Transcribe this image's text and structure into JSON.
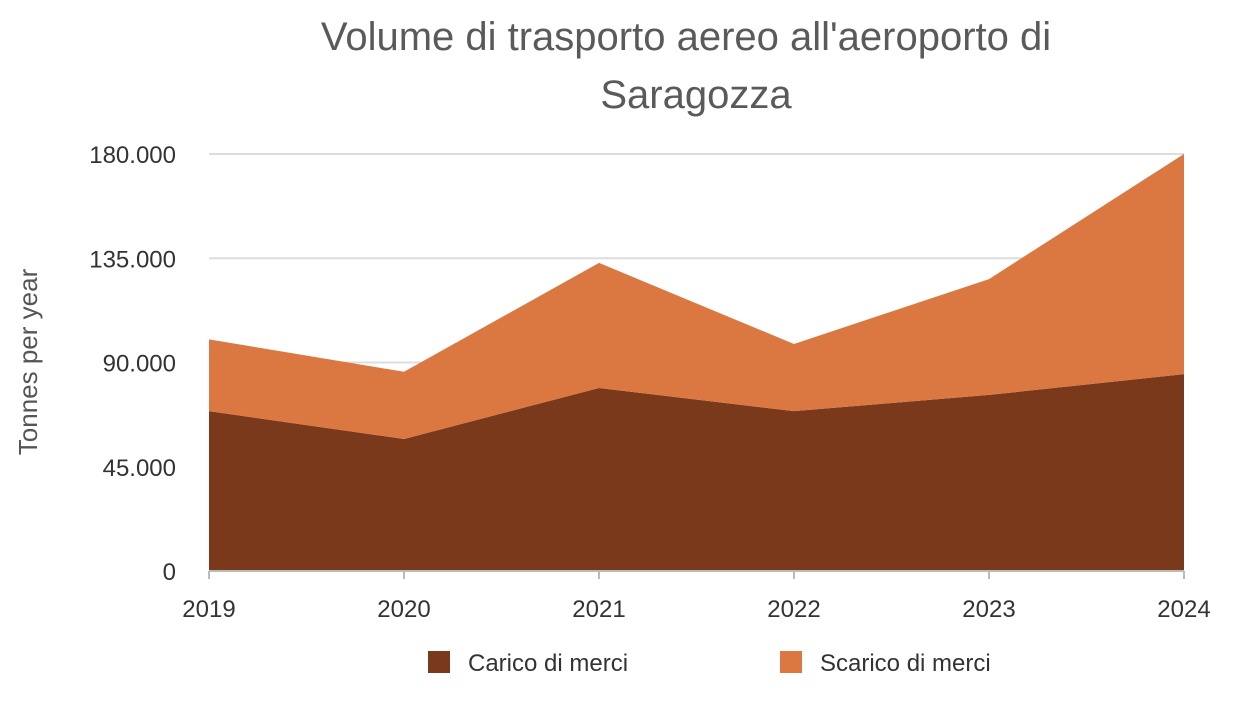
{
  "chart_data": {
    "type": "area",
    "stacked": true,
    "title_lines": [
      "Volume di trasporto aereo all'aeroporto di",
      "Saragozza"
    ],
    "xlabel": "",
    "ylabel": "Tonnes per year",
    "categories": [
      "2019",
      "2020",
      "2021",
      "2022",
      "2023",
      "2024"
    ],
    "ylim": [
      0,
      180000
    ],
    "yticks": [
      0,
      45000,
      90000,
      135000,
      180000
    ],
    "ytick_labels": [
      "0",
      "45.000",
      "90.000",
      "135.000",
      "180.000"
    ],
    "grid": true,
    "legend_position": "bottom",
    "series": [
      {
        "name": "Carico di merci",
        "color": "#7a391a",
        "values": [
          69000,
          57000,
          79000,
          69000,
          76000,
          85000
        ]
      },
      {
        "name": "Scarico di merci",
        "color": "#db7842",
        "values": [
          31000,
          29000,
          54000,
          29000,
          50000,
          95000
        ]
      }
    ]
  }
}
